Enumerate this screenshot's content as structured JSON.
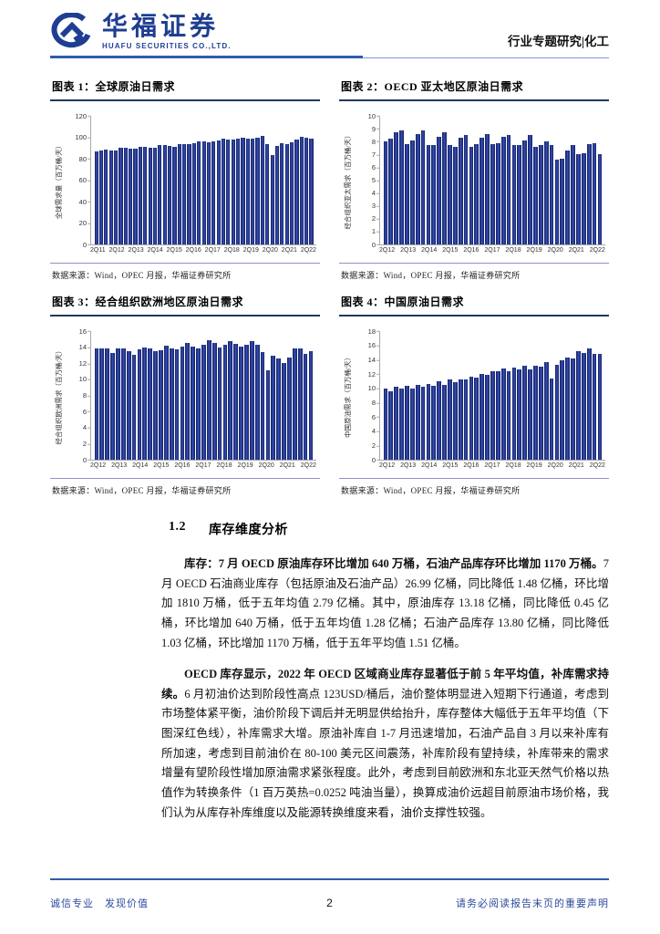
{
  "header": {
    "brand_cn": "华福证券",
    "brand_en": "HUAFU SECURITIES CO.,LTD.",
    "report_type": "行业专题研究|化工"
  },
  "chart_data": [
    {
      "type": "bar",
      "title": "图表 1：全球原油日需求",
      "ylabel": "全球需求量（百万桶/天）",
      "source": "数据来源：Wind，OPEC 月报，华福证券研究所",
      "ylim": [
        0,
        120
      ],
      "yticks": [
        0,
        20,
        40,
        60,
        80,
        100,
        120
      ],
      "xticklabels": [
        "2Q11",
        "2Q12",
        "2Q13",
        "2Q14",
        "2Q15",
        "2Q16",
        "2Q17",
        "2Q18",
        "2Q19",
        "2Q20",
        "2Q21",
        "2Q22"
      ],
      "categories": [
        "2Q11",
        "3Q11",
        "4Q11",
        "1Q12",
        "2Q12",
        "3Q12",
        "4Q12",
        "1Q13",
        "2Q13",
        "3Q13",
        "4Q13",
        "1Q14",
        "2Q14",
        "3Q14",
        "4Q14",
        "1Q15",
        "2Q15",
        "3Q15",
        "4Q15",
        "1Q16",
        "2Q16",
        "3Q16",
        "4Q16",
        "1Q17",
        "2Q17",
        "3Q17",
        "4Q17",
        "1Q18",
        "2Q18",
        "3Q18",
        "4Q18",
        "1Q19",
        "2Q19",
        "3Q19",
        "4Q19",
        "1Q20",
        "2Q20",
        "3Q20",
        "4Q20",
        "1Q21",
        "2Q21",
        "3Q21",
        "4Q21",
        "1Q22",
        "2Q22"
      ],
      "values": [
        87,
        88,
        88.5,
        88,
        88,
        90,
        90.5,
        89.5,
        89.5,
        91,
        91.5,
        90.5,
        90.5,
        92.5,
        93,
        92,
        91.5,
        93.5,
        93.5,
        94,
        94.5,
        96,
        96,
        95.5,
        96,
        97,
        98.5,
        98,
        97.5,
        98.5,
        99.5,
        99,
        99,
        100,
        101,
        93.5,
        83,
        92,
        94.5,
        94,
        95.5,
        98,
        100.5,
        99.5,
        98.5
      ]
    },
    {
      "type": "bar",
      "title": "图表 2：OECD 亚太地区原油日需求",
      "ylabel": "经合组织亚太需求（百万桶/天）",
      "source": "数据来源：Wind，OPEC 月报，华福证券研究所",
      "ylim": [
        0,
        10
      ],
      "yticks": [
        0,
        1,
        2,
        3,
        4,
        5,
        6,
        7,
        8,
        9,
        10
      ],
      "xticklabels": [
        "2Q12",
        "2Q13",
        "2Q14",
        "2Q15",
        "2Q16",
        "2Q17",
        "2Q18",
        "2Q19",
        "2Q20",
        "2Q21",
        "2Q22"
      ],
      "categories": [
        "2Q12",
        "3Q12",
        "4Q12",
        "1Q13",
        "2Q13",
        "3Q13",
        "4Q13",
        "1Q14",
        "2Q14",
        "3Q14",
        "4Q14",
        "1Q15",
        "2Q15",
        "3Q15",
        "4Q15",
        "1Q16",
        "2Q16",
        "3Q16",
        "4Q16",
        "1Q17",
        "2Q17",
        "3Q17",
        "4Q17",
        "1Q18",
        "2Q18",
        "3Q18",
        "4Q18",
        "1Q19",
        "2Q19",
        "3Q19",
        "4Q19",
        "1Q20",
        "2Q20",
        "3Q20",
        "4Q20",
        "1Q21",
        "2Q21",
        "3Q21",
        "4Q21",
        "1Q22",
        "2Q22"
      ],
      "values": [
        8.0,
        8.2,
        8.7,
        8.9,
        7.8,
        8.1,
        8.6,
        8.9,
        7.7,
        7.7,
        8.4,
        8.7,
        7.7,
        7.6,
        8.3,
        8.5,
        7.6,
        7.8,
        8.3,
        8.6,
        7.8,
        7.9,
        8.4,
        8.5,
        7.7,
        7.7,
        8.1,
        8.5,
        7.6,
        7.7,
        8.0,
        7.7,
        6.6,
        6.7,
        7.3,
        7.7,
        7.0,
        7.1,
        7.8,
        7.9,
        7.0
      ]
    },
    {
      "type": "bar",
      "title": "图表 3：经合组织欧洲地区原油日需求",
      "ylabel": "经合组织欧洲需求（百万桶/天）",
      "source": "数据来源：Wind，OPEC 月报，华福证券研究所",
      "ylim": [
        0,
        16
      ],
      "yticks": [
        0,
        2,
        4,
        6,
        8,
        10,
        12,
        14,
        16
      ],
      "xticklabels": [
        "2Q12",
        "2Q13",
        "2Q14",
        "2Q15",
        "2Q16",
        "2Q17",
        "2Q18",
        "2Q19",
        "2Q20",
        "2Q21",
        "2Q22"
      ],
      "categories": [
        "2Q12",
        "3Q12",
        "4Q12",
        "1Q13",
        "2Q13",
        "3Q13",
        "4Q13",
        "1Q14",
        "2Q14",
        "3Q14",
        "4Q14",
        "1Q15",
        "2Q15",
        "3Q15",
        "4Q15",
        "1Q16",
        "2Q16",
        "3Q16",
        "4Q16",
        "1Q17",
        "2Q17",
        "3Q17",
        "4Q17",
        "1Q18",
        "2Q18",
        "3Q18",
        "4Q18",
        "1Q19",
        "2Q19",
        "3Q19",
        "4Q19",
        "1Q20",
        "2Q20",
        "3Q20",
        "4Q20",
        "1Q21",
        "2Q21",
        "3Q21",
        "4Q21",
        "1Q22",
        "2Q22"
      ],
      "values": [
        13.9,
        13.9,
        13.8,
        13.3,
        13.9,
        13.9,
        13.5,
        13.0,
        13.7,
        14.0,
        13.8,
        13.5,
        13.6,
        14.2,
        13.8,
        13.7,
        14.1,
        14.5,
        14.1,
        13.9,
        14.3,
        14.9,
        14.5,
        14.0,
        14.3,
        14.8,
        14.4,
        14.1,
        14.3,
        14.8,
        14.3,
        13.4,
        11.1,
        12.9,
        12.6,
        12.0,
        12.7,
        13.9,
        13.9,
        13.2,
        13.5
      ]
    },
    {
      "type": "bar",
      "title": "图表 4：中国原油日需求",
      "ylabel": "中国原油需求（百万桶/天）",
      "source": "数据来源：Wind，OPEC 月报，华福证券研究所",
      "ylim": [
        0,
        18
      ],
      "yticks": [
        0,
        2,
        4,
        6,
        8,
        10,
        12,
        14,
        16,
        18
      ],
      "xticklabels": [
        "2Q12",
        "2Q13",
        "2Q14",
        "2Q15",
        "2Q16",
        "2Q17",
        "2Q18",
        "2Q19",
        "2Q20",
        "2Q21",
        "2Q22"
      ],
      "categories": [
        "2Q12",
        "3Q12",
        "4Q12",
        "1Q13",
        "2Q13",
        "3Q13",
        "4Q13",
        "1Q14",
        "2Q14",
        "3Q14",
        "4Q14",
        "1Q15",
        "2Q15",
        "3Q15",
        "4Q15",
        "1Q16",
        "2Q16",
        "3Q16",
        "4Q16",
        "1Q17",
        "2Q17",
        "3Q17",
        "4Q17",
        "1Q18",
        "2Q18",
        "3Q18",
        "4Q18",
        "1Q19",
        "2Q19",
        "3Q19",
        "4Q19",
        "1Q20",
        "2Q20",
        "3Q20",
        "4Q20",
        "1Q21",
        "2Q21",
        "3Q21",
        "4Q21",
        "1Q22",
        "2Q22"
      ],
      "values": [
        9.9,
        9.6,
        10.2,
        9.9,
        10.3,
        10.0,
        10.5,
        10.2,
        10.6,
        10.4,
        11.0,
        10.5,
        11.2,
        10.8,
        11.2,
        11.2,
        11.6,
        11.5,
        12.0,
        11.9,
        12.4,
        12.4,
        12.8,
        12.4,
        12.9,
        12.7,
        13.1,
        12.7,
        13.2,
        13.0,
        13.6,
        11.4,
        13.3,
        13.9,
        14.3,
        14.2,
        15.2,
        15.0,
        15.6,
        14.8,
        14.8
      ]
    }
  ],
  "section": {
    "number": "1.2",
    "title": "库存维度分析",
    "para1_bold": "库存：7 月 OECD 原油库存环比增加 640 万桶，石油产品库存环比增加 1170 万桶。",
    "para1_rest": "7 月 OECD 石油商业库存（包括原油及石油产品）26.99 亿桶，同比降低 1.48 亿桶，环比增加 1810 万桶，低于五年均值 2.79 亿桶。其中，原油库存 13.18 亿桶，同比降低 0.45 亿桶，环比增加 640 万桶，低于五年均值 1.28 亿桶；石油产品库存 13.80 亿桶，同比降低 1.03 亿桶，环比增加 1170 万桶，低于五年平均值 1.51 亿桶。",
    "para2_bold": "OECD 库存显示，2022 年 OECD 区域商业库存显著低于前 5 年平均值，补库需求持续。",
    "para2_rest": "6 月初油价达到阶段性高点 123USD/桶后，油价整体明显进入短期下行通道，考虑到市场整体紧平衡，油价阶段下调后并无明显供给抬升，库存整体大幅低于五年平均值（下图深红色线），补库需求大增。原油补库自 1-7 月迅速增加，石油产品自 3 月以来补库有所加速，考虑到目前油价在 80-100 美元区间震荡，补库阶段有望持续，补库带来的需求增量有望阶段性增加原油需求紧张程度。此外，考虑到目前欧洲和东北亚天然气价格以热值作为转换条件（1 百万英热=0.0252 吨油当量），换算成油价远超目前原油市场价格，我们认为从库存补库维度以及能源转换维度来看，油价支撑性较强。"
  },
  "footer": {
    "slogan": "诚信专业　发现价值",
    "page_number": "2",
    "disclaimer": "请务必阅读报告末页的重要声明"
  },
  "colors": {
    "brand_blue": "#1e3e93",
    "bar_dark": "#1b2b74",
    "bar_light": "#3c52c0",
    "title_rule": "#1f3864",
    "source_rule": "#9090d0",
    "header_rule": "#2e5ca8",
    "header_rule_light": "#7c9ccf",
    "footer_text": "#2d4a9e"
  }
}
